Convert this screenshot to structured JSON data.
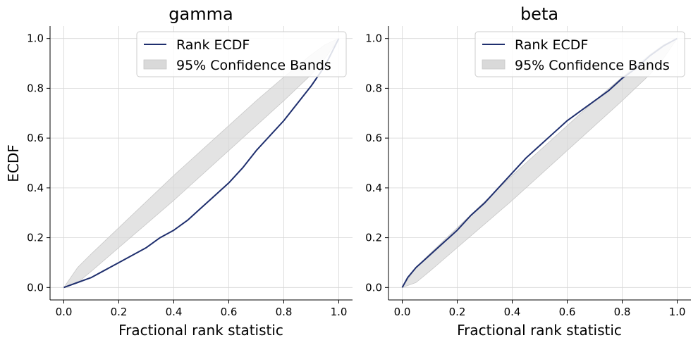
{
  "chart_data": [
    {
      "type": "line",
      "title": "gamma",
      "xlabel": "Fractional rank statistic",
      "ylabel": "ECDF",
      "xlim": [
        -0.05,
        1.05
      ],
      "ylim": [
        -0.05,
        1.05
      ],
      "xticks": [
        "0.0",
        "0.2",
        "0.4",
        "0.6",
        "0.8",
        "1.0"
      ],
      "yticks": [
        "0.0",
        "0.2",
        "0.4",
        "0.6",
        "0.8",
        "1.0"
      ],
      "grid": true,
      "legend": {
        "placement": "top-right",
        "entries": [
          "Rank ECDF",
          "95% Confidence Bands"
        ]
      },
      "colors": {
        "line": "#1f2f6e",
        "band": "#d9d9d9"
      },
      "series": [
        {
          "name": "Rank ECDF",
          "x": [
            0.0,
            0.05,
            0.1,
            0.15,
            0.2,
            0.25,
            0.3,
            0.35,
            0.4,
            0.45,
            0.5,
            0.55,
            0.6,
            0.65,
            0.7,
            0.75,
            0.8,
            0.85,
            0.9,
            0.95,
            1.0
          ],
          "y": [
            0.0,
            0.02,
            0.04,
            0.07,
            0.1,
            0.13,
            0.16,
            0.2,
            0.23,
            0.27,
            0.32,
            0.37,
            0.42,
            0.48,
            0.55,
            0.61,
            0.67,
            0.74,
            0.81,
            0.89,
            1.0
          ]
        }
      ],
      "band": {
        "name": "95% Confidence Bands",
        "x": [
          0.0,
          0.05,
          0.1,
          0.2,
          0.3,
          0.4,
          0.5,
          0.6,
          0.7,
          0.8,
          0.9,
          0.95,
          1.0
        ],
        "lower": [
          0.0,
          0.02,
          0.065,
          0.16,
          0.255,
          0.35,
          0.45,
          0.55,
          0.65,
          0.75,
          0.855,
          0.92,
          1.0
        ],
        "upper": [
          0.0,
          0.08,
          0.135,
          0.24,
          0.345,
          0.45,
          0.55,
          0.65,
          0.75,
          0.845,
          0.935,
          0.975,
          1.0
        ]
      }
    },
    {
      "type": "line",
      "title": "beta",
      "xlabel": "Fractional rank statistic",
      "ylabel": "",
      "xlim": [
        -0.05,
        1.05
      ],
      "ylim": [
        -0.05,
        1.05
      ],
      "xticks": [
        "0.0",
        "0.2",
        "0.4",
        "0.6",
        "0.8",
        "1.0"
      ],
      "yticks": [
        "0.0",
        "0.2",
        "0.4",
        "0.6",
        "0.8",
        "1.0"
      ],
      "grid": true,
      "legend": {
        "placement": "top-right",
        "entries": [
          "Rank ECDF",
          "95% Confidence Bands"
        ]
      },
      "colors": {
        "line": "#1f2f6e",
        "band": "#d9d9d9"
      },
      "series": [
        {
          "name": "Rank ECDF",
          "x": [
            0.0,
            0.02,
            0.05,
            0.1,
            0.15,
            0.2,
            0.25,
            0.3,
            0.35,
            0.4,
            0.45,
            0.5,
            0.55,
            0.6,
            0.65,
            0.7,
            0.75,
            0.8,
            0.85,
            0.9,
            0.95,
            1.0
          ],
          "y": [
            0.0,
            0.04,
            0.08,
            0.13,
            0.18,
            0.23,
            0.29,
            0.34,
            0.4,
            0.46,
            0.52,
            0.57,
            0.62,
            0.67,
            0.71,
            0.75,
            0.79,
            0.84,
            0.88,
            0.93,
            0.97,
            1.0
          ]
        }
      ],
      "band": {
        "name": "95% Confidence Bands",
        "x": [
          0.0,
          0.05,
          0.1,
          0.2,
          0.3,
          0.4,
          0.5,
          0.6,
          0.7,
          0.8,
          0.9,
          0.95,
          1.0
        ],
        "lower": [
          0.0,
          0.02,
          0.065,
          0.16,
          0.255,
          0.35,
          0.45,
          0.55,
          0.65,
          0.75,
          0.855,
          0.92,
          1.0
        ],
        "upper": [
          0.0,
          0.08,
          0.135,
          0.24,
          0.345,
          0.45,
          0.55,
          0.65,
          0.75,
          0.845,
          0.935,
          0.975,
          1.0
        ]
      }
    }
  ]
}
